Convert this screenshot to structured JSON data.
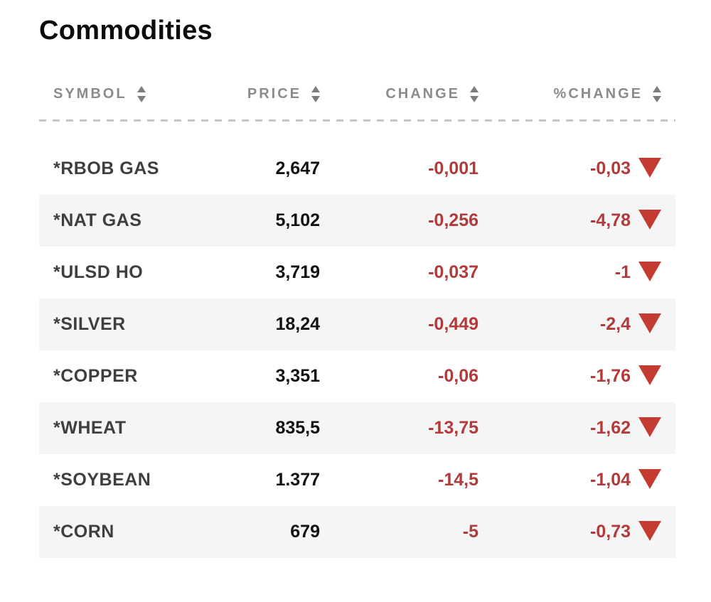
{
  "title": "Commodities",
  "colors": {
    "negative_text": "#b23a3a",
    "down_triangle": "#c43b31",
    "header_text": "#8b8b8b",
    "alt_row_bg": "#f5f5f5",
    "symbol_text": "#3f3f3f",
    "price_text": "#121212"
  },
  "table": {
    "columns": [
      {
        "label": "SYMBOL",
        "sortable": true
      },
      {
        "label": "PRICE",
        "sortable": true
      },
      {
        "label": "CHANGE",
        "sortable": true
      },
      {
        "label": "%CHANGE",
        "sortable": true
      }
    ],
    "rows": [
      {
        "symbol": "*RBOB GAS",
        "price": "2,647",
        "change": "-0,001",
        "pct_change": "-0,03",
        "direction": "down"
      },
      {
        "symbol": "*NAT GAS",
        "price": "5,102",
        "change": "-0,256",
        "pct_change": "-4,78",
        "direction": "down"
      },
      {
        "symbol": "*ULSD HO",
        "price": "3,719",
        "change": "-0,037",
        "pct_change": "-1",
        "direction": "down"
      },
      {
        "symbol": "*SILVER",
        "price": "18,24",
        "change": "-0,449",
        "pct_change": "-2,4",
        "direction": "down"
      },
      {
        "symbol": "*COPPER",
        "price": "3,351",
        "change": "-0,06",
        "pct_change": "-1,76",
        "direction": "down"
      },
      {
        "symbol": "*WHEAT",
        "price": "835,5",
        "change": "-13,75",
        "pct_change": "-1,62",
        "direction": "down"
      },
      {
        "symbol": "*SOYBEAN",
        "price": "1.377",
        "change": "-14,5",
        "pct_change": "-1,04",
        "direction": "down"
      },
      {
        "symbol": "*CORN",
        "price": "679",
        "change": "-5",
        "pct_change": "-0,73",
        "direction": "down"
      }
    ]
  }
}
